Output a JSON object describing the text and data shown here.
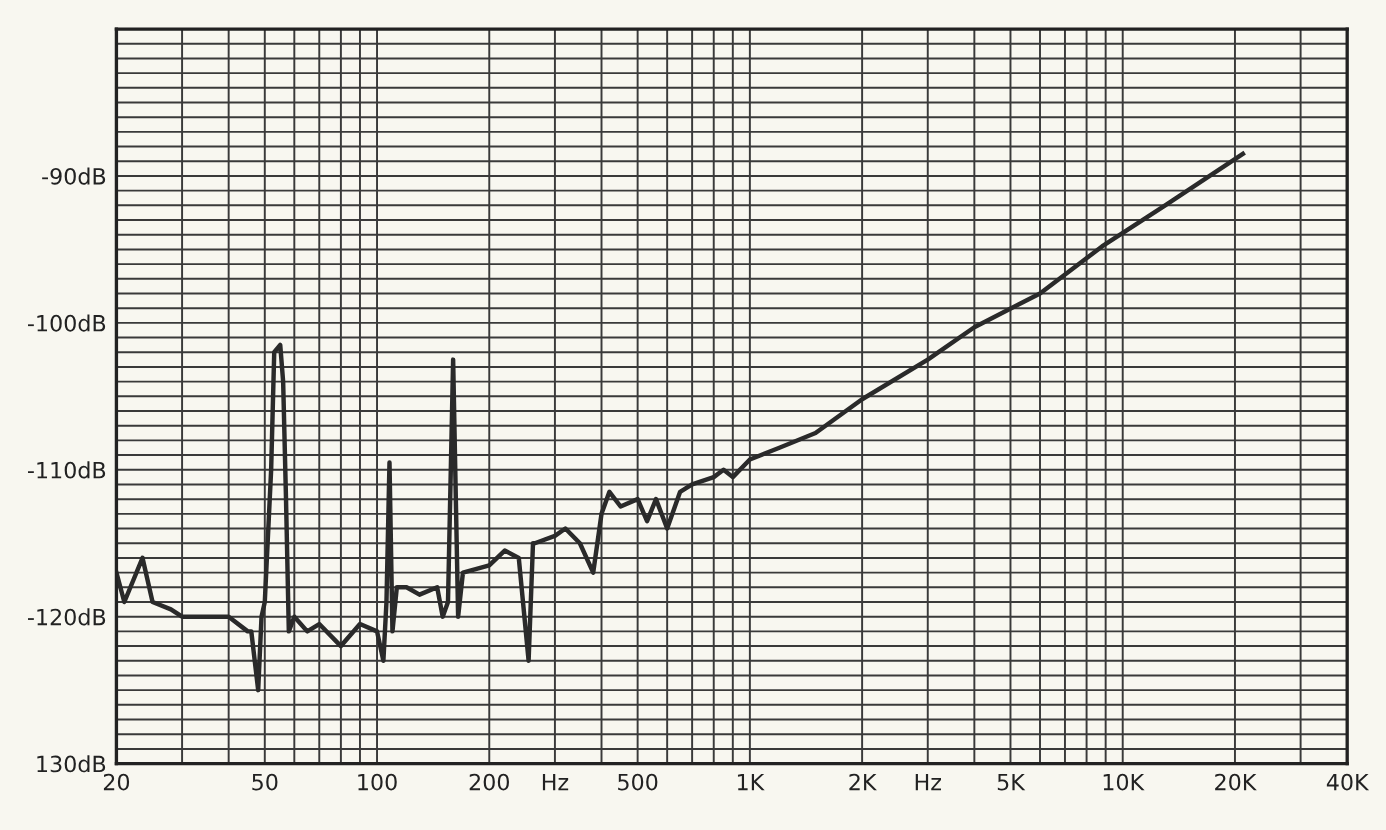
{
  "chart_data": {
    "type": "line",
    "xlim": [
      20,
      40000
    ],
    "ylim": [
      -130,
      -80
    ],
    "log": "x",
    "grid": true,
    "marker": "none",
    "line_style": "solid",
    "xticks": [
      20,
      {
        "value": 30,
        "label": null
      },
      {
        "value": 40,
        "label": null
      },
      50,
      {
        "value": 60,
        "label": null
      },
      {
        "value": 70,
        "label": null
      },
      {
        "value": 80,
        "label": null
      },
      {
        "value": 90,
        "label": null
      },
      100,
      200,
      {
        "value": 300,
        "label": "Hz"
      },
      {
        "value": 400,
        "label": null
      },
      500,
      {
        "value": 600,
        "label": null
      },
      {
        "value": 700,
        "label": null
      },
      {
        "value": 800,
        "label": null
      },
      {
        "value": 900,
        "label": null
      },
      {
        "value": 1000,
        "label": "1K"
      },
      {
        "value": 2000,
        "label": "2K"
      },
      {
        "value": 3000,
        "label": "Hz"
      },
      {
        "value": 4000,
        "label": null
      },
      {
        "value": 5000,
        "label": "5K"
      },
      {
        "value": 6000,
        "label": null
      },
      {
        "value": 7000,
        "label": null
      },
      {
        "value": 8000,
        "label": null
      },
      {
        "value": 9000,
        "label": null
      },
      {
        "value": 10000,
        "label": "10K"
      },
      {
        "value": 20000,
        "label": "20K"
      },
      {
        "value": 30000,
        "label": null
      },
      {
        "value": 40000,
        "label": "40K"
      }
    ],
    "yticks": [
      {
        "value": -130,
        "label": "130dB"
      },
      {
        "value": -129,
        "label": null
      },
      {
        "value": -128,
        "label": null
      },
      {
        "value": -127,
        "label": null
      },
      {
        "value": -126,
        "label": null
      },
      {
        "value": -125,
        "label": null
      },
      {
        "value": -124,
        "label": null
      },
      {
        "value": -123,
        "label": null
      },
      {
        "value": -122,
        "label": null
      },
      {
        "value": -121,
        "label": null
      },
      {
        "value": -120,
        "label": "-120dB"
      },
      {
        "value": -119,
        "label": null
      },
      {
        "value": -118,
        "label": null
      },
      {
        "value": -117,
        "label": null
      },
      {
        "value": -116,
        "label": null
      },
      {
        "value": -115,
        "label": null
      },
      {
        "value": -114,
        "label": null
      },
      {
        "value": -113,
        "label": null
      },
      {
        "value": -112,
        "label": null
      },
      {
        "value": -111,
        "label": null
      },
      {
        "value": -110,
        "label": "-110dB"
      },
      {
        "value": -109,
        "label": null
      },
      {
        "value": -108,
        "label": null
      },
      {
        "value": -107,
        "label": null
      },
      {
        "value": -106,
        "label": null
      },
      {
        "value": -105,
        "label": null
      },
      {
        "value": -104,
        "label": null
      },
      {
        "value": -103,
        "label": null
      },
      {
        "value": -102,
        "label": null
      },
      {
        "value": -101,
        "label": null
      },
      {
        "value": -100,
        "label": "-100dB"
      },
      {
        "value": -99,
        "label": null
      },
      {
        "value": -98,
        "label": null
      },
      {
        "value": -97,
        "label": null
      },
      {
        "value": -96,
        "label": null
      },
      {
        "value": -95,
        "label": null
      },
      {
        "value": -94,
        "label": null
      },
      {
        "value": -93,
        "label": null
      },
      {
        "value": -92,
        "label": null
      },
      {
        "value": -91,
        "label": null
      },
      {
        "value": -90,
        "label": "-90dB"
      },
      {
        "value": -89,
        "label": null
      },
      {
        "value": -88,
        "label": null
      },
      {
        "value": -87,
        "label": null
      },
      {
        "value": -86,
        "label": null
      },
      {
        "value": -85,
        "label": null
      },
      {
        "value": -84,
        "label": null
      },
      {
        "value": -83,
        "label": null
      },
      {
        "value": -82,
        "label": null
      },
      {
        "value": -81,
        "label": null
      },
      {
        "value": -80,
        "label": null
      }
    ],
    "series": [
      {
        "color": "#2a2a2a",
        "x": [
          20,
          21,
          23.5,
          25,
          28,
          30,
          35,
          40,
          45,
          46,
          48,
          49,
          50,
          52,
          53,
          55,
          56,
          57,
          58,
          60,
          65,
          70,
          80,
          90,
          100,
          104,
          106,
          108,
          110,
          113,
          120,
          130,
          145,
          150,
          155,
          160,
          165,
          170,
          200,
          220,
          240,
          255,
          262,
          265,
          300,
          320,
          350,
          380,
          400,
          420,
          450,
          500,
          530,
          560,
          600,
          650,
          700,
          800,
          850,
          900,
          1000,
          1200,
          1500,
          2000,
          3000,
          4000,
          6000,
          8800,
          13000,
          21000
        ],
        "values": [
          -117,
          -119,
          -116,
          -119,
          -119.5,
          -120,
          -120,
          -120,
          -121,
          -121,
          -125,
          -120,
          -119,
          -110,
          -102,
          -101.5,
          -104,
          -112,
          -121,
          -120,
          -121,
          -120.5,
          -122,
          -120.5,
          -121,
          -123,
          -119,
          -109.5,
          -121,
          -118,
          -118,
          -118.5,
          -118,
          -120,
          -119,
          -102.5,
          -120,
          -117,
          -116.5,
          -115.5,
          -116,
          -123,
          -115,
          -115,
          -114.5,
          -114,
          -115,
          -117,
          -113,
          -111.5,
          -112.5,
          -112,
          -113.5,
          -112,
          -114,
          -111.5,
          -111,
          -110.5,
          -110,
          -110.5,
          -109.3,
          -108.5,
          -107.5,
          -105.2,
          -102.5,
          -100.3,
          -98,
          -94.8,
          -92,
          -88.5
        ]
      }
    ]
  }
}
